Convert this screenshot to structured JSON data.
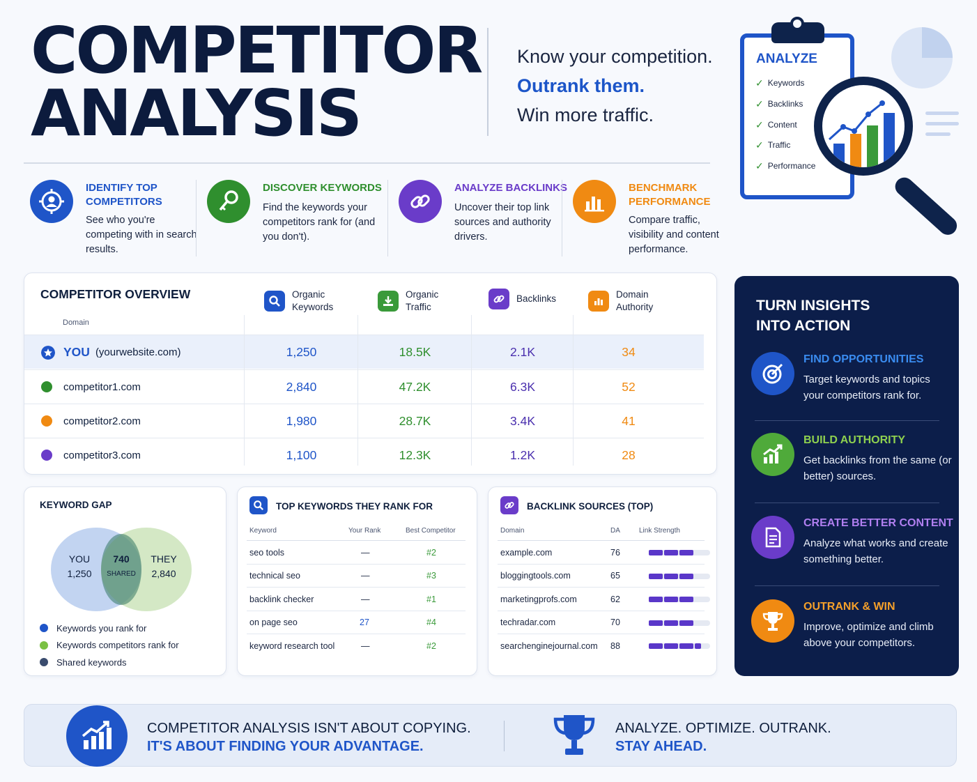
{
  "header": {
    "title_line1": "COMPETITOR",
    "title_line2": "ANALYSIS",
    "tagline1": "Know your competition.",
    "tagline2": "Outrank them.",
    "tagline3": "Win more traffic."
  },
  "clipboard": {
    "title": "ANALYZE",
    "items": [
      "Keywords",
      "Backlinks",
      "Content",
      "Traffic",
      "Performance"
    ]
  },
  "features": [
    {
      "title": "IDENTIFY TOP COMPETITORS",
      "desc": "See who you're competing with in search results.",
      "color": "#1f55c8",
      "icon": "target-user-icon"
    },
    {
      "title": "DISCOVER KEYWORDS",
      "desc": "Find the keywords your competitors rank for (and you don't).",
      "color": "#2f8f2e",
      "icon": "key-icon"
    },
    {
      "title": "ANALYZE BACKLINKS",
      "desc": "Uncover their top link sources and authority drivers.",
      "color": "#6a3cc9",
      "icon": "link-icon"
    },
    {
      "title": "BENCHMARK PERFORMANCE",
      "desc": "Compare traffic, visibility and content performance.",
      "color": "#f08a12",
      "icon": "bar-chart-icon"
    }
  ],
  "overview": {
    "title": "COMPETITOR OVERVIEW",
    "domain_header": "Domain",
    "columns": [
      {
        "label": "Organic Keywords",
        "color": "#1f55c8",
        "icon": "search-icon"
      },
      {
        "label": "Organic Traffic",
        "color": "#3a9a3a",
        "icon": "download-icon"
      },
      {
        "label": "Backlinks",
        "color": "#6a3cc9",
        "icon": "link-icon"
      },
      {
        "label": "Domain Authority",
        "color": "#f08a12",
        "icon": "bar-chart-icon"
      }
    ],
    "you_label": "YOU",
    "you_domain": "(yourwebsite.com)",
    "rows": [
      {
        "domain": "",
        "keywords": "1,250",
        "traffic": "18.5K",
        "backlinks": "2.1K",
        "authority": "34"
      },
      {
        "domain": "competitor1.com",
        "keywords": "2,840",
        "traffic": "47.2K",
        "backlinks": "6.3K",
        "authority": "52",
        "dot": "#2f8f2e"
      },
      {
        "domain": "competitor2.com",
        "keywords": "1,980",
        "traffic": "28.7K",
        "backlinks": "3.4K",
        "authority": "41",
        "dot": "#f08a12"
      },
      {
        "domain": "competitor3.com",
        "keywords": "1,100",
        "traffic": "12.3K",
        "backlinks": "1.2K",
        "authority": "28",
        "dot": "#6a3cc9"
      }
    ]
  },
  "keyword_gap": {
    "title": "KEYWORD GAP",
    "you_label": "YOU",
    "you_value": "1,250",
    "shared_value": "740",
    "shared_label": "SHARED",
    "they_label": "THEY",
    "they_value": "2,840",
    "legend": [
      {
        "label": "Keywords you rank for",
        "color": "#1f55c8"
      },
      {
        "label": "Keywords competitors rank for",
        "color": "#7ac143"
      },
      {
        "label": "Shared keywords",
        "color": "#3a4c6e"
      }
    ]
  },
  "top_keywords": {
    "title": "TOP KEYWORDS THEY RANK FOR",
    "headers": [
      "Keyword",
      "Your Rank",
      "Best Competitor"
    ],
    "rows": [
      {
        "keyword": "seo tools",
        "your_rank": "—",
        "best": "#2"
      },
      {
        "keyword": "technical seo",
        "your_rank": "—",
        "best": "#3"
      },
      {
        "keyword": "backlink checker",
        "your_rank": "—",
        "best": "#1"
      },
      {
        "keyword": "on page seo",
        "your_rank": "27",
        "best": "#4"
      },
      {
        "keyword": "keyword research tool",
        "your_rank": "—",
        "best": "#2"
      }
    ]
  },
  "backlink_sources": {
    "title": "BACKLINK SOURCES (TOP)",
    "headers": [
      "Domain",
      "DA",
      "Link Strength"
    ],
    "rows": [
      {
        "domain": "example.com",
        "da": "76",
        "strength": 0.75
      },
      {
        "domain": "bloggingtools.com",
        "da": "65",
        "strength": 0.75
      },
      {
        "domain": "marketingprofs.com",
        "da": "62",
        "strength": 0.75
      },
      {
        "domain": "techradar.com",
        "da": "70",
        "strength": 0.75
      },
      {
        "domain": "searchenginejournal.com",
        "da": "88",
        "strength": 0.85
      }
    ]
  },
  "insights": {
    "title_line1": "TURN INSIGHTS",
    "title_line2": "INTO ACTION",
    "items": [
      {
        "title": "FIND OPPORTUNITIES",
        "desc": "Target keywords and topics your competitors rank for.",
        "color": "#3a8cf0",
        "bg": "#1f55c8",
        "icon": "target-icon"
      },
      {
        "title": "BUILD AUTHORITY",
        "desc": "Get backlinks from the same (or better) sources.",
        "color": "#8fd14f",
        "bg": "#4faa3a",
        "icon": "growth-chart-icon"
      },
      {
        "title": "CREATE BETTER CONTENT",
        "desc": "Analyze what works and create something better.",
        "color": "#b07ff0",
        "bg": "#6a3cc9",
        "icon": "document-icon"
      },
      {
        "title": "OUTRANK & WIN",
        "desc": "Improve, optimize and climb above your competitors.",
        "color": "#f5a02a",
        "bg": "#f08a12",
        "icon": "trophy-icon"
      }
    ]
  },
  "footer": {
    "left_line1": "COMPETITOR ANALYSIS ISN'T ABOUT COPYING.",
    "left_line2": "IT'S ABOUT FINDING YOUR ADVANTAGE.",
    "right_line1": "ANALYZE. OPTIMIZE. OUTRANK.",
    "right_line2": "STAY AHEAD."
  }
}
